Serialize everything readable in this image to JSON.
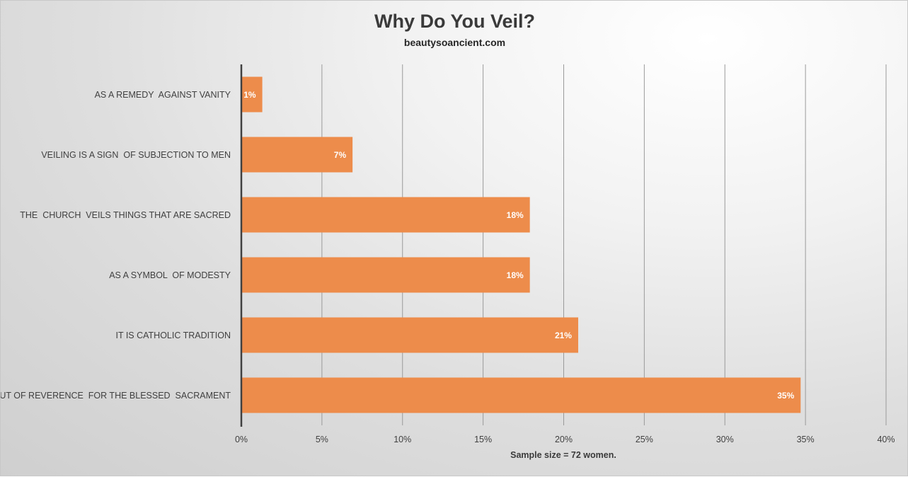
{
  "header": {
    "title": "Why Do You Veil?",
    "subtitle": "beautysoancient.com"
  },
  "footer": {
    "note": "Sample size = 72 women."
  },
  "colors": {
    "bar": "#ED8C4B",
    "axis": "#404040",
    "grid": "#9a9a9a",
    "text": "#404040",
    "label_text": "#ffffff"
  },
  "chart_data": {
    "type": "bar",
    "orientation": "horizontal",
    "title": "Why Do You Veil?",
    "subtitle": "beautysoancient.com",
    "categories": [
      "AS A REMEDY  AGAINST VANITY",
      "VEILING IS A SIGN  OF SUBJECTION TO MEN",
      "THE  CHURCH  VEILS THINGS THAT ARE SACRED",
      "AS A SYMBOL  OF MODESTY",
      "IT IS CATHOLIC TRADITION",
      "OUT OF REVERENCE  FOR THE BLESSED  SACRAMENT"
    ],
    "values": [
      1.3,
      6.9,
      17.9,
      17.9,
      20.9,
      34.7
    ],
    "data_labels": [
      "1%",
      "7%",
      "18%",
      "18%",
      "21%",
      "35%"
    ],
    "xlim": [
      0,
      40
    ],
    "xticks": [
      0,
      5,
      10,
      15,
      20,
      25,
      30,
      35,
      40
    ],
    "xtick_labels": [
      "0%",
      "5%",
      "10%",
      "15%",
      "20%",
      "25%",
      "30%",
      "35%",
      "40%"
    ],
    "xlabel": "",
    "ylabel": "",
    "grid": true,
    "legend": "none",
    "note": "Sample size = 72 women."
  }
}
